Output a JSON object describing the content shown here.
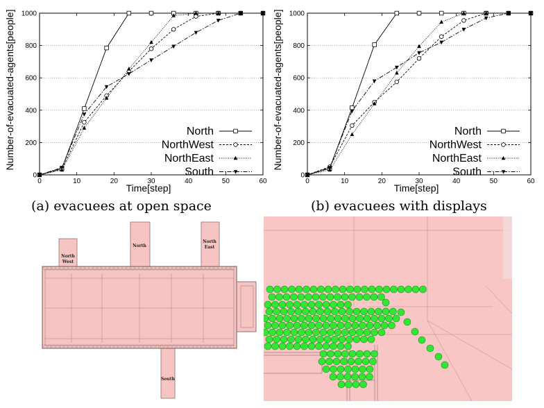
{
  "chart_data": [
    {
      "type": "line",
      "caption": "(a) evacuees at open space",
      "xlabel": "Time[step]",
      "ylabel": "Number-of-evacuated-agents[people]",
      "xlim": [
        0,
        60
      ],
      "ylim": [
        0,
        1000
      ],
      "xticks": [
        0,
        10,
        20,
        30,
        40,
        50,
        60
      ],
      "yticks": [
        0,
        200,
        400,
        600,
        800,
        1000
      ],
      "grid": "horizontal dotted",
      "legend": "bottom-right",
      "series": [
        {
          "name": "North",
          "marker": "square",
          "dash": "solid",
          "x": [
            0,
            6,
            12,
            18,
            24,
            30,
            36,
            42,
            48,
            54,
            60
          ],
          "y": [
            0,
            40,
            410,
            785,
            1000,
            1000,
            1000,
            1000,
            1000,
            1000,
            1000
          ]
        },
        {
          "name": "NorthWest",
          "marker": "circle",
          "dash": "dashed",
          "x": [
            0,
            6,
            12,
            18,
            24,
            30,
            36,
            42,
            48,
            54,
            60
          ],
          "y": [
            0,
            35,
            325,
            490,
            640,
            780,
            900,
            980,
            1000,
            1000,
            1000
          ]
        },
        {
          "name": "NorthEast",
          "marker": "triangle-up",
          "dash": "dotted",
          "x": [
            0,
            6,
            12,
            18,
            24,
            30,
            36,
            42,
            48,
            54,
            60
          ],
          "y": [
            0,
            30,
            290,
            475,
            655,
            820,
            985,
            1000,
            1000,
            1000,
            1000
          ]
        },
        {
          "name": "South",
          "marker": "triangle-down",
          "dash": "dashdot",
          "x": [
            0,
            6,
            12,
            18,
            24,
            30,
            36,
            42,
            48,
            54,
            60
          ],
          "y": [
            0,
            45,
            375,
            545,
            625,
            710,
            795,
            880,
            955,
            1000,
            1000
          ]
        }
      ]
    },
    {
      "type": "line",
      "caption": "(b) evacuees with displays",
      "xlabel": "Time[step]",
      "ylabel": "Number-of-evacuated-agents[people]",
      "xlim": [
        0,
        60
      ],
      "ylim": [
        0,
        1000
      ],
      "xticks": [
        0,
        10,
        20,
        30,
        40,
        50,
        60
      ],
      "yticks": [
        0,
        200,
        400,
        600,
        800,
        1000
      ],
      "grid": "horizontal dotted",
      "legend": "bottom-right",
      "series": [
        {
          "name": "North",
          "marker": "square",
          "dash": "solid",
          "x": [
            0,
            6,
            12,
            18,
            24,
            30,
            36,
            42,
            48,
            54,
            60
          ],
          "y": [
            0,
            40,
            415,
            805,
            1000,
            1000,
            1000,
            1000,
            1000,
            1000,
            1000
          ]
        },
        {
          "name": "NorthWest",
          "marker": "circle",
          "dash": "dashed",
          "x": [
            0,
            6,
            12,
            18,
            24,
            30,
            36,
            42,
            48,
            54,
            60
          ],
          "y": [
            0,
            50,
            305,
            450,
            575,
            720,
            855,
            955,
            1000,
            1000,
            1000
          ]
        },
        {
          "name": "NorthEast",
          "marker": "triangle-up",
          "dash": "dotted",
          "x": [
            0,
            6,
            12,
            18,
            24,
            30,
            36,
            42,
            48,
            54,
            60
          ],
          "y": [
            0,
            30,
            250,
            440,
            630,
            795,
            945,
            1000,
            1000,
            1000,
            1000
          ]
        },
        {
          "name": "South",
          "marker": "triangle-down",
          "dash": "dashdot",
          "x": [
            0,
            6,
            12,
            18,
            24,
            30,
            36,
            42,
            48,
            54,
            60
          ],
          "y": [
            0,
            45,
            395,
            580,
            665,
            755,
            820,
            900,
            970,
            1000,
            1000
          ]
        }
      ]
    }
  ],
  "floor_map": {
    "fill_color": "#f7c4c4",
    "stroke_color": "#8a7070",
    "labels": {
      "north_west": [
        "North",
        "West"
      ],
      "north": "North",
      "north_east": [
        "North",
        "East"
      ],
      "south": "South"
    }
  },
  "zoom_view": {
    "fill_color": "#f9c6c6",
    "agent_color": "#33e633"
  }
}
